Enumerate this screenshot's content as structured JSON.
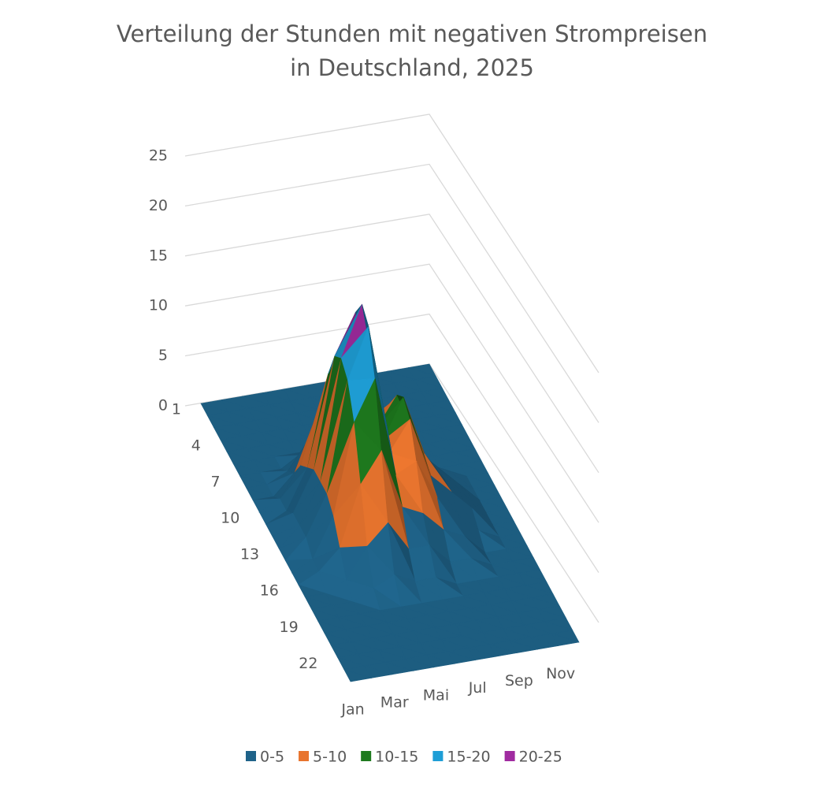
{
  "chart_data": {
    "type": "surface",
    "title": [
      "Verteilung der Stunden mit negativen Strompreisen",
      "in Deutschland, 2025"
    ],
    "categories": [
      "Jan",
      null,
      "Mar",
      null,
      "Mai",
      null,
      "Jul",
      null,
      "Sep",
      null,
      "Nov",
      null
    ],
    "hours": [
      1,
      null,
      null,
      4,
      null,
      null,
      7,
      null,
      null,
      10,
      null,
      null,
      13,
      null,
      null,
      16,
      null,
      null,
      19,
      null,
      null,
      22,
      null,
      null
    ],
    "values": [
      [
        0,
        0,
        0,
        0,
        0,
        0,
        0,
        0,
        0,
        0,
        0,
        0
      ],
      [
        0,
        0,
        0,
        0,
        0,
        0,
        0,
        0,
        0,
        0,
        0,
        0
      ],
      [
        0,
        0,
        0,
        0,
        0,
        0,
        0,
        0,
        0,
        0,
        0,
        0
      ],
      [
        0,
        0,
        0,
        0,
        0,
        0,
        0,
        0,
        0,
        0,
        0,
        0
      ],
      [
        0,
        0,
        0,
        0,
        0,
        0,
        0,
        0,
        0,
        0,
        0,
        0
      ],
      [
        0,
        0,
        0,
        0,
        0,
        0,
        0,
        0,
        0,
        0,
        0,
        0
      ],
      [
        0,
        0,
        0,
        1,
        1,
        0,
        0,
        0,
        0,
        0,
        0,
        0
      ],
      [
        0,
        0,
        1,
        3,
        4,
        2,
        1,
        0,
        0,
        0,
        0,
        0
      ],
      [
        0,
        0,
        2,
        6,
        7,
        4,
        3,
        1,
        1,
        0,
        0,
        0
      ],
      [
        0,
        1,
        4,
        10,
        12,
        7,
        6,
        3,
        2,
        1,
        0,
        0
      ],
      [
        0,
        1,
        5,
        14,
        17,
        8,
        10,
        5,
        3,
        1,
        0,
        0
      ],
      [
        0,
        2,
        6,
        17,
        21,
        9,
        12,
        6,
        4,
        2,
        0,
        0
      ],
      [
        0,
        2,
        6,
        18,
        23,
        9,
        13,
        7,
        4,
        2,
        0,
        0
      ],
      [
        0,
        2,
        6,
        17,
        22,
        9,
        12,
        6,
        4,
        2,
        0,
        0
      ],
      [
        0,
        1,
        5,
        14,
        18,
        8,
        9,
        5,
        3,
        1,
        0,
        0
      ],
      [
        0,
        1,
        3,
        9,
        12,
        6,
        5,
        3,
        2,
        0,
        0,
        0
      ],
      [
        0,
        0,
        1,
        4,
        6,
        3,
        3,
        1,
        1,
        0,
        0,
        0
      ],
      [
        0,
        0,
        0,
        1,
        2,
        1,
        1,
        0,
        0,
        0,
        0,
        0
      ],
      [
        0,
        0,
        0,
        0,
        0,
        0,
        0,
        0,
        0,
        0,
        0,
        0
      ],
      [
        0,
        0,
        0,
        0,
        0,
        0,
        0,
        0,
        0,
        0,
        0,
        0
      ],
      [
        0,
        0,
        0,
        0,
        0,
        0,
        0,
        0,
        0,
        0,
        0,
        0
      ],
      [
        0,
        0,
        0,
        0,
        0,
        0,
        0,
        0,
        0,
        0,
        0,
        0
      ],
      [
        0,
        0,
        0,
        0,
        0,
        0,
        0,
        0,
        0,
        0,
        0,
        0
      ],
      [
        0,
        0,
        0,
        0,
        0,
        0,
        0,
        0,
        0,
        0,
        0,
        0
      ]
    ],
    "zlim": [
      0,
      25
    ],
    "zticks": [
      0,
      5,
      10,
      15,
      20,
      25
    ],
    "grid": true,
    "legend_position": "bottom",
    "legend": [
      {
        "name": "0-5",
        "color": "#1f6389"
      },
      {
        "name": "5-10",
        "color": "#e8742e"
      },
      {
        "name": "10-15",
        "color": "#1e7a1e"
      },
      {
        "name": "15-20",
        "color": "#1e9ed6"
      },
      {
        "name": "20-25",
        "color": "#a02ba0"
      }
    ]
  }
}
